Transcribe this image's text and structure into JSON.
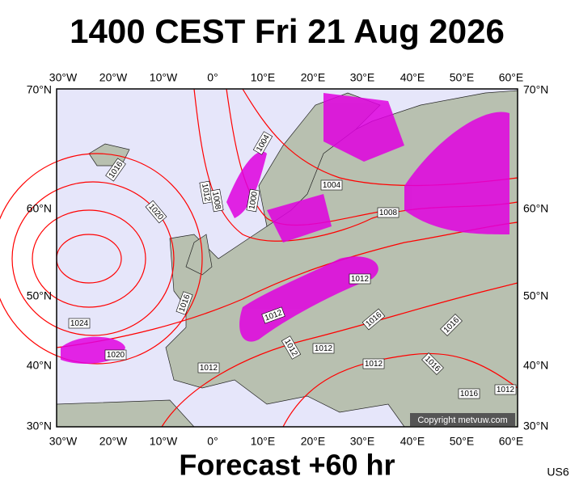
{
  "header": {
    "title": "1400 CEST Fri 21 Aug 2026"
  },
  "footer": {
    "forecast": "Forecast +60 hr",
    "code": "US6"
  },
  "map": {
    "lon_labels": [
      "30°W",
      "20°W",
      "10°W",
      "0°",
      "10°E",
      "20°E",
      "30°E",
      "40°E",
      "50°E",
      "60°E"
    ],
    "lat_labels": [
      "70°N",
      "60°N",
      "50°N",
      "40°N",
      "30°N"
    ],
    "isobar_labels": [
      "1016",
      "1020",
      "1012",
      "1008",
      "1004",
      "1000",
      "1004",
      "1008",
      "1012",
      "1016",
      "1024",
      "1020",
      "1012",
      "1012",
      "1012",
      "1012",
      "1016",
      "1012",
      "1016",
      "1016",
      "1016",
      "1012"
    ],
    "copyright": "Copyright metvuw.com"
  }
}
